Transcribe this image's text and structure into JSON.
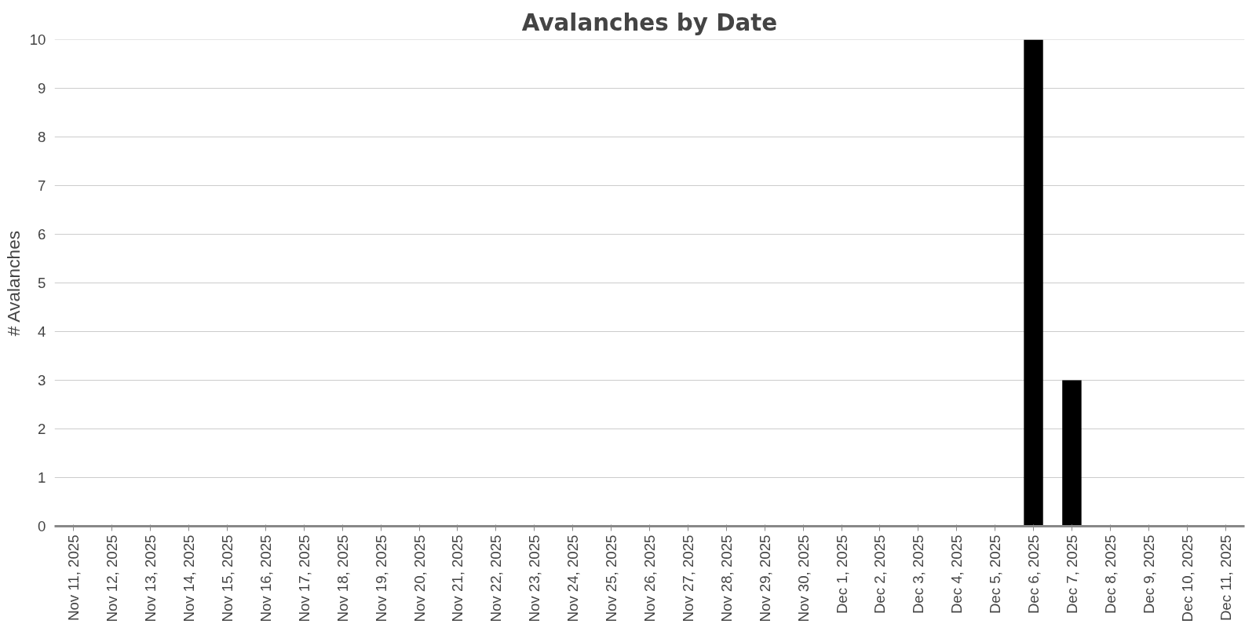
{
  "chart_data": {
    "type": "bar",
    "title": "Avalanches by Date",
    "ylabel": "# Avalanches",
    "categories": [
      "Nov 11, 2025",
      "Nov 12, 2025",
      "Nov 13, 2025",
      "Nov 14, 2025",
      "Nov 15, 2025",
      "Nov 16, 2025",
      "Nov 17, 2025",
      "Nov 18, 2025",
      "Nov 19, 2025",
      "Nov 20, 2025",
      "Nov 21, 2025",
      "Nov 22, 2025",
      "Nov 23, 2025",
      "Nov 24, 2025",
      "Nov 25, 2025",
      "Nov 26, 2025",
      "Nov 27, 2025",
      "Nov 28, 2025",
      "Nov 29, 2025",
      "Nov 30, 2025",
      "Dec 1, 2025",
      "Dec 2, 2025",
      "Dec 3, 2025",
      "Dec 4, 2025",
      "Dec 5, 2025",
      "Dec 6, 2025",
      "Dec 7, 2025",
      "Dec 8, 2025",
      "Dec 9, 2025",
      "Dec 10, 2025",
      "Dec 11, 2025"
    ],
    "values": [
      0,
      0,
      0,
      0,
      0,
      0,
      0,
      0,
      0,
      0,
      0,
      0,
      0,
      0,
      0,
      0,
      0,
      0,
      0,
      0,
      0,
      0,
      0,
      0,
      0,
      10,
      3,
      0,
      0,
      0,
      0
    ],
    "color": "#000000",
    "ylim": [
      0,
      10
    ],
    "yticks": [
      0,
      1,
      2,
      3,
      4,
      5,
      6,
      7,
      8,
      9,
      10
    ],
    "grid": "y"
  }
}
